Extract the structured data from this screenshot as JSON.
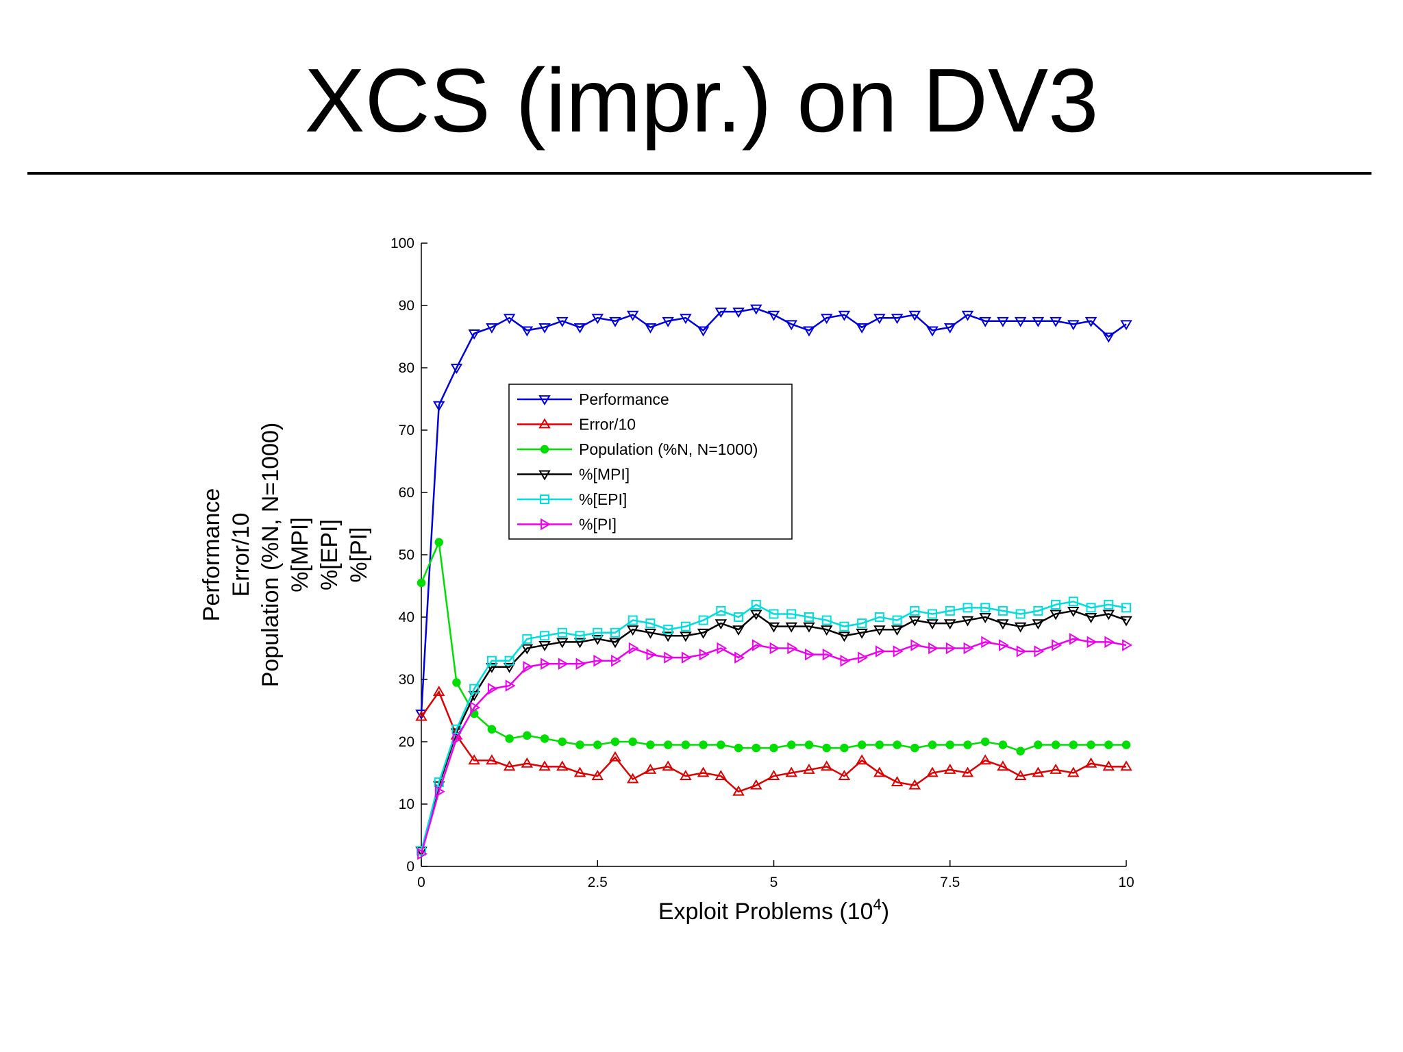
{
  "slide": {
    "title": "XCS (impr.) on DV3"
  },
  "chart_data": {
    "type": "line",
    "xlabel": "Exploit Problems (10",
    "xlabel_exponent": "4",
    "xlabel_suffix": ")",
    "ylabel_lines": [
      "Performance",
      "Error/10",
      "Population (%N, N=1000)",
      "%[MPI]",
      "%[EPI]",
      "%[PI]"
    ],
    "xlim": [
      0,
      10
    ],
    "ylim": [
      0,
      100
    ],
    "xticks": [
      0,
      2.5,
      5,
      7.5,
      10
    ],
    "xtick_labels": [
      "0",
      "2.5",
      "5",
      "7.5",
      "10"
    ],
    "yticks": [
      0,
      10,
      20,
      30,
      40,
      50,
      60,
      70,
      80,
      90,
      100
    ],
    "ytick_labels": [
      "0",
      "10",
      "20",
      "30",
      "40",
      "50",
      "60",
      "70",
      "80",
      "90",
      "100"
    ],
    "grid": false,
    "legend_position": "upper-middle",
    "x": [
      0,
      0.25,
      0.5,
      0.75,
      1,
      1.25,
      1.5,
      1.75,
      2,
      2.25,
      2.5,
      2.75,
      3,
      3.25,
      3.5,
      3.75,
      4,
      4.25,
      4.5,
      4.75,
      5,
      5.25,
      5.5,
      5.75,
      6,
      6.25,
      6.5,
      6.75,
      7,
      7.25,
      7.5,
      7.75,
      8,
      8.25,
      8.5,
      8.75,
      9,
      9.25,
      9.5,
      9.75,
      10
    ],
    "series": [
      {
        "name": "Performance",
        "color": "#0000dd",
        "marker": "triangle-down",
        "values": [
          24.5,
          74,
          80,
          85.5,
          86.5,
          88,
          86,
          86.5,
          87.5,
          86.5,
          88,
          87.5,
          88.5,
          86.5,
          87.5,
          88,
          86,
          89,
          89,
          89.5,
          88.5,
          87,
          86,
          88,
          88.5,
          86.5,
          88,
          88,
          88.5,
          86,
          86.5,
          88.5,
          87.5,
          87.5,
          87.5,
          87.5,
          87.5,
          87,
          87.5,
          85,
          87
        ]
      },
      {
        "name": "Error/10",
        "color": "#dd0000",
        "marker": "triangle-up",
        "values": [
          24,
          28,
          21,
          17,
          17,
          16,
          16.5,
          16,
          16,
          15,
          14.5,
          17.5,
          14,
          15.5,
          16,
          14.5,
          15,
          14.5,
          12,
          13,
          14.5,
          15,
          15.5,
          16,
          14.5,
          17,
          15,
          13.5,
          13,
          15,
          15.5,
          15,
          17,
          16,
          14.5,
          15,
          15.5,
          15,
          16.5,
          16,
          16
        ]
      },
      {
        "name": "Population (%N, N=1000)",
        "color": "#00dd00",
        "marker": "circle",
        "values": [
          45.5,
          52,
          29.5,
          24.5,
          22,
          20.5,
          21,
          20.5,
          20,
          19.5,
          19.5,
          20,
          20,
          19.5,
          19.5,
          19.5,
          19.5,
          19.5,
          19,
          19,
          19,
          19.5,
          19.5,
          19,
          19,
          19.5,
          19.5,
          19.5,
          19,
          19.5,
          19.5,
          19.5,
          20,
          19.5,
          18.5,
          19.5,
          19.5,
          19.5,
          19.5,
          19.5,
          19.5
        ]
      },
      {
        "name": "%[MPI]",
        "color": "#000000",
        "marker": "triangle-down",
        "values": [
          2.5,
          13,
          21.5,
          27.5,
          32,
          32,
          35,
          35.5,
          36,
          36,
          36.5,
          36,
          38,
          37.5,
          37,
          37,
          37.5,
          39,
          38,
          40.5,
          38.5,
          38.5,
          38.5,
          38,
          37,
          37.5,
          38,
          38,
          39.5,
          39,
          39,
          39.5,
          40,
          39,
          38.5,
          39,
          40.5,
          41,
          40,
          40.5,
          39.5
        ]
      },
      {
        "name": "%[EPI]",
        "color": "#00dddd",
        "marker": "square",
        "values": [
          2.5,
          13.5,
          22,
          28.5,
          33,
          33,
          36.5,
          37,
          37.5,
          37,
          37.5,
          37.5,
          39.5,
          39,
          38,
          38.5,
          39.5,
          41,
          40,
          42,
          40.5,
          40.5,
          40,
          39.5,
          38.5,
          39,
          40,
          39.5,
          41,
          40.5,
          41,
          41.5,
          41.5,
          41,
          40.5,
          41,
          42,
          42.5,
          41.5,
          42,
          41.5
        ]
      },
      {
        "name": "%[PI]",
        "color": "#ee00ee",
        "marker": "triangle-right",
        "values": [
          2,
          12,
          20.5,
          25.5,
          28.5,
          29,
          32,
          32.5,
          32.5,
          32.5,
          33,
          33,
          35,
          34,
          33.5,
          33.5,
          34,
          35,
          33.5,
          35.5,
          35,
          35,
          34,
          34,
          33,
          33.5,
          34.5,
          34.5,
          35.5,
          35,
          35,
          35,
          36,
          35.5,
          34.5,
          34.5,
          35.5,
          36.5,
          36,
          36,
          35.5
        ]
      }
    ]
  }
}
